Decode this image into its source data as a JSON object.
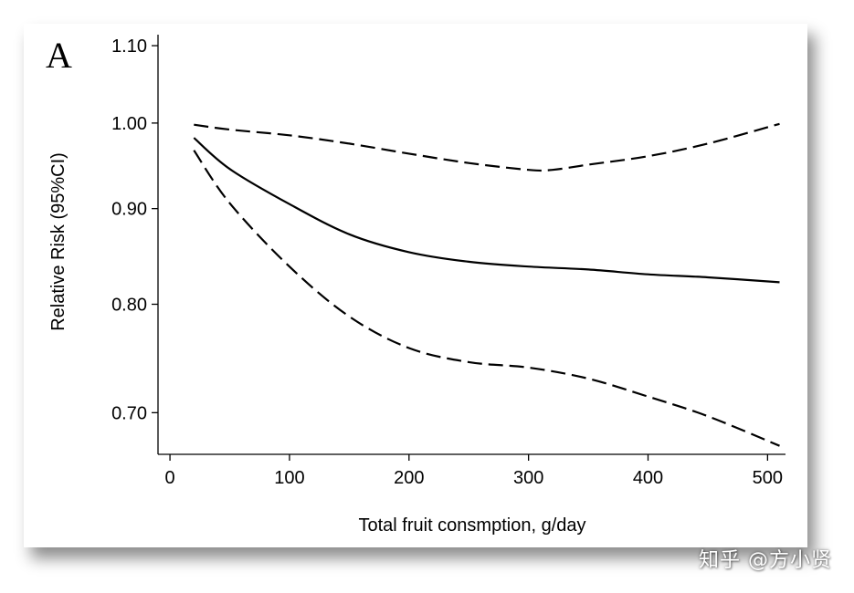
{
  "panel_label": "A",
  "watermark": "知乎 @方小贤",
  "chart_data": {
    "type": "line",
    "title": "",
    "xlabel": "Total fruit consmption, g/day",
    "ylabel": "Relative Risk (95%CI)",
    "xlim": [
      -10,
      515
    ],
    "ylim": [
      0.665,
      1.115
    ],
    "y_scale": "log",
    "x_ticks": [
      0,
      100,
      200,
      300,
      400,
      500
    ],
    "x_tick_labels": [
      "0",
      "100",
      "200",
      "300",
      "400",
      "500"
    ],
    "y_ticks": [
      0.7,
      0.8,
      0.9,
      1.0,
      1.1
    ],
    "y_tick_labels": [
      "0.70",
      "0.80",
      "0.90",
      "1.00",
      "1.10"
    ],
    "grid": false,
    "legend": "none",
    "series": [
      {
        "style": "solid",
        "points": [
          [
            20,
            0.982
          ],
          [
            50,
            0.945
          ],
          [
            100,
            0.905
          ],
          [
            150,
            0.872
          ],
          [
            200,
            0.853
          ],
          [
            250,
            0.843
          ],
          [
            300,
            0.838
          ],
          [
            350,
            0.835
          ],
          [
            400,
            0.83
          ],
          [
            450,
            0.827
          ],
          [
            510,
            0.822
          ]
        ]
      },
      {
        "style": "dashed",
        "points": [
          [
            20,
            0.998
          ],
          [
            50,
            0.992
          ],
          [
            100,
            0.985
          ],
          [
            150,
            0.975
          ],
          [
            200,
            0.963
          ],
          [
            250,
            0.952
          ],
          [
            300,
            0.944
          ],
          [
            320,
            0.944
          ],
          [
            350,
            0.95
          ],
          [
            400,
            0.96
          ],
          [
            450,
            0.975
          ],
          [
            510,
            0.999
          ]
        ]
      },
      {
        "style": "dashed",
        "points": [
          [
            20,
            0.967
          ],
          [
            50,
            0.906
          ],
          [
            100,
            0.838
          ],
          [
            150,
            0.788
          ],
          [
            200,
            0.758
          ],
          [
            250,
            0.745
          ],
          [
            300,
            0.74
          ],
          [
            350,
            0.73
          ],
          [
            400,
            0.714
          ],
          [
            450,
            0.697
          ],
          [
            510,
            0.672
          ]
        ]
      }
    ],
    "colors": {
      "lines": "#000000",
      "axes": "#000000",
      "background": "#ffffff"
    }
  }
}
